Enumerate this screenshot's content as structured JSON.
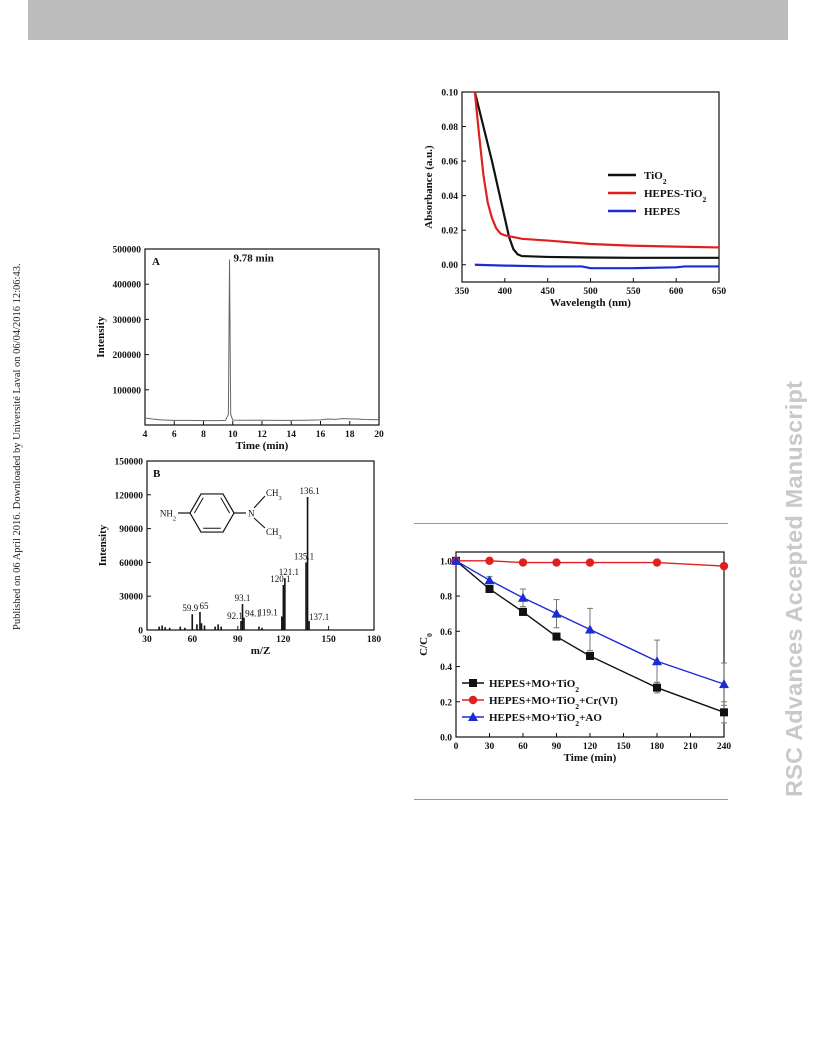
{
  "header": {
    "bar_color": "#bcbcbc"
  },
  "side_note": "Published on 06 April 2016. Downloaded by Université Laval on 06/04/2016 12:06:43.",
  "watermark": "RSC Advances Accepted Manuscript",
  "chart_data": [
    {
      "id": "gc-chromatogram",
      "type": "line",
      "panel_label": "A",
      "xlabel": "Time (min)",
      "ylabel": "Intensity",
      "xlim": [
        4,
        20
      ],
      "ylim": [
        0,
        500000
      ],
      "xticks": [
        "4",
        "6",
        "8",
        "10",
        "12",
        "14",
        "16",
        "18",
        "20"
      ],
      "yticks": [
        "100000",
        "200000",
        "300000",
        "400000",
        "500000"
      ],
      "annotations": [
        {
          "text": "9.78 min",
          "x": 9.78,
          "y": 470000
        }
      ],
      "series": [
        {
          "color": "#666666",
          "x": [
            4,
            4.5,
            5,
            5.5,
            6,
            7,
            8,
            9,
            9.5,
            9.7,
            9.78,
            9.86,
            10,
            11,
            12,
            13,
            14,
            15,
            16,
            16.5,
            17,
            17.5,
            18,
            18.5,
            19,
            20
          ],
          "y": [
            20000,
            17000,
            15000,
            14000,
            13000,
            13000,
            12500,
            12500,
            13000,
            30000,
            470000,
            30000,
            14000,
            13500,
            13500,
            13000,
            13000,
            13500,
            14500,
            17000,
            16000,
            18000,
            17500,
            17000,
            15500,
            15000
          ]
        }
      ]
    },
    {
      "id": "mass-spectrum",
      "type": "bar",
      "panel_label": "B",
      "xlabel": "m/Z",
      "ylabel": "Intensity",
      "xlim": [
        30,
        180
      ],
      "ylim": [
        0,
        150000
      ],
      "xticks": [
        "30",
        "60",
        "90",
        "120",
        "150",
        "180"
      ],
      "yticks": [
        "0",
        "30000",
        "60000",
        "90000",
        "120000",
        "150000"
      ],
      "molecule": {
        "left_group": "NH2",
        "right_group": "N",
        "methyl_top": "CH3",
        "methyl_bottom": "CH3"
      },
      "peaks": [
        {
          "x": 38,
          "y": 3000
        },
        {
          "x": 40,
          "y": 4000
        },
        {
          "x": 42,
          "y": 2500
        },
        {
          "x": 45,
          "y": 2000
        },
        {
          "x": 52,
          "y": 3000
        },
        {
          "x": 55,
          "y": 2000
        },
        {
          "x": 59.9,
          "y": 14000,
          "label": "59.9"
        },
        {
          "x": 63,
          "y": 5000
        },
        {
          "x": 65,
          "y": 16000,
          "label": "65"
        },
        {
          "x": 66,
          "y": 6000
        },
        {
          "x": 68,
          "y": 4000
        },
        {
          "x": 75,
          "y": 3000
        },
        {
          "x": 77,
          "y": 5000
        },
        {
          "x": 79,
          "y": 3000
        },
        {
          "x": 92.1,
          "y": 8000,
          "label": "92.1"
        },
        {
          "x": 93.1,
          "y": 23000,
          "label": "93.1"
        },
        {
          "x": 94.1,
          "y": 11000,
          "label": "94.1"
        },
        {
          "x": 104,
          "y": 3000
        },
        {
          "x": 106,
          "y": 2000
        },
        {
          "x": 119.1,
          "y": 12000,
          "label": "119.1"
        },
        {
          "x": 120.1,
          "y": 40000,
          "label": "120.1"
        },
        {
          "x": 121.1,
          "y": 46000,
          "label": "121.1"
        },
        {
          "x": 135.1,
          "y": 60000,
          "label": "135.1"
        },
        {
          "x": 136.1,
          "y": 118000,
          "label": "136.1"
        },
        {
          "x": 137.1,
          "y": 8000,
          "label": "137.1"
        }
      ]
    },
    {
      "id": "uv-vis",
      "type": "line",
      "xlabel": "Wavelength (nm)",
      "ylabel": "Absorbance (a.u.)",
      "xlim": [
        350,
        650
      ],
      "ylim": [
        -0.01,
        0.1
      ],
      "xticks": [
        "350",
        "400",
        "450",
        "500",
        "550",
        "600",
        "650"
      ],
      "yticks": [
        "0.00",
        "0.02",
        "0.04",
        "0.06",
        "0.08",
        "0.10"
      ],
      "legend_position": "right",
      "series": [
        {
          "name": "TiO2",
          "color": "#111111",
          "x": [
            365,
            375,
            385,
            395,
            400,
            405,
            410,
            415,
            420,
            450,
            500,
            550,
            600,
            650
          ],
          "y": [
            0.1,
            0.08,
            0.06,
            0.038,
            0.027,
            0.016,
            0.009,
            0.006,
            0.005,
            0.0045,
            0.0042,
            0.004,
            0.004,
            0.004
          ]
        },
        {
          "name": "HEPES-TiO2",
          "color": "#e02020",
          "x": [
            365,
            370,
            375,
            380,
            385,
            390,
            395,
            400,
            410,
            420,
            450,
            500,
            550,
            600,
            650
          ],
          "y": [
            0.1,
            0.075,
            0.052,
            0.036,
            0.027,
            0.021,
            0.018,
            0.017,
            0.016,
            0.015,
            0.014,
            0.012,
            0.011,
            0.0105,
            0.01
          ]
        },
        {
          "name": "HEPES",
          "color": "#1c2bd4",
          "x": [
            365,
            400,
            450,
            490,
            500,
            540,
            550,
            600,
            610,
            650
          ],
          "y": [
            0,
            -0.0005,
            -0.001,
            -0.001,
            -0.002,
            -0.002,
            -0.002,
            -0.0015,
            -0.001,
            -0.001
          ]
        }
      ]
    },
    {
      "id": "degradation",
      "type": "line",
      "xlabel": "Time (min)",
      "ylabel": "C/C0",
      "xlim": [
        0,
        240
      ],
      "ylim": [
        0,
        1.05
      ],
      "xticks": [
        "0",
        "30",
        "60",
        "90",
        "120",
        "150",
        "180",
        "210",
        "240"
      ],
      "yticks": [
        "0.0",
        "0.2",
        "0.4",
        "0.6",
        "0.8",
        "1.0"
      ],
      "legend_position": "bottom-left",
      "series": [
        {
          "name": "HEPES+MO+TiO2",
          "color": "#111111",
          "marker": "square",
          "x": [
            0,
            30,
            60,
            90,
            120,
            180,
            240
          ],
          "y": [
            1.0,
            0.84,
            0.71,
            0.57,
            0.46,
            0.28,
            0.14
          ],
          "err": [
            0,
            0.02,
            0.02,
            0.02,
            0.02,
            0.03,
            0.06
          ]
        },
        {
          "name": "HEPES+MO+TiO2+Cr(VI)",
          "color": "#e02020",
          "marker": "circle",
          "x": [
            0,
            30,
            60,
            90,
            120,
            180,
            240
          ],
          "y": [
            1.0,
            1.0,
            0.99,
            0.99,
            0.99,
            0.99,
            0.97
          ],
          "err": [
            0,
            0,
            0,
            0,
            0,
            0,
            0
          ]
        },
        {
          "name": "HEPES+MO+TiO2+AO",
          "color": "#1c2bd4",
          "marker": "triangle",
          "x": [
            0,
            30,
            60,
            90,
            120,
            180,
            240
          ],
          "y": [
            1.0,
            0.89,
            0.79,
            0.7,
            0.61,
            0.43,
            0.3
          ],
          "err": [
            0,
            0.02,
            0.05,
            0.08,
            0.12,
            0.12,
            0.12
          ]
        }
      ]
    }
  ]
}
